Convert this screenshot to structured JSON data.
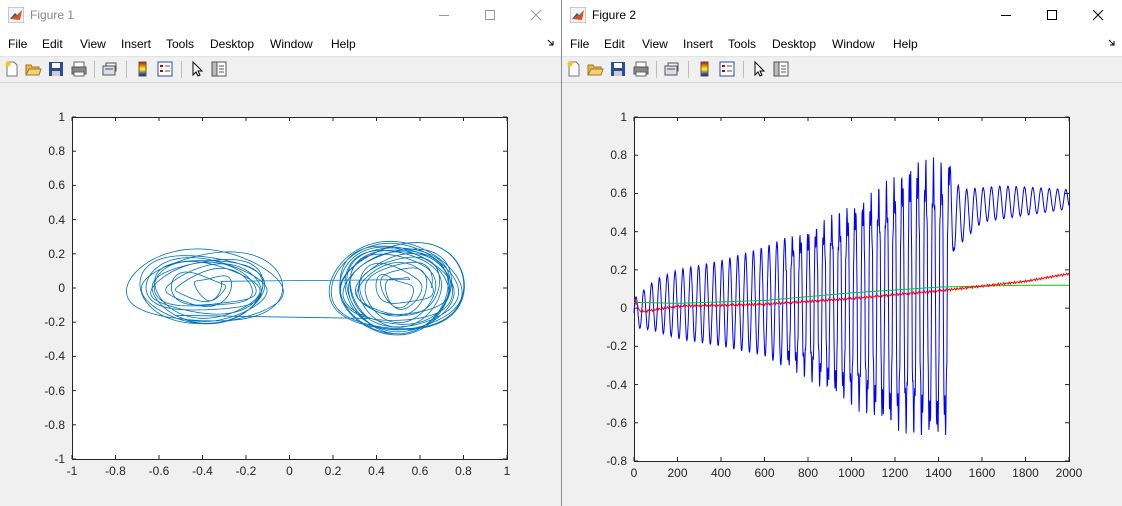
{
  "windows": [
    {
      "title": "Figure 1",
      "menu": [
        "File",
        "Edit",
        "View",
        "Insert",
        "Tools",
        "Desktop",
        "Window",
        "Help"
      ],
      "axes": {
        "xticks": [
          "-1",
          "-0.8",
          "-0.6",
          "-0.4",
          "-0.2",
          "0",
          "0.2",
          "0.4",
          "0.6",
          "0.8",
          "1"
        ],
        "yticks": [
          "1",
          "0.8",
          "0.6",
          "0.4",
          "0.2",
          "0",
          "-0.2",
          "-0.4",
          "-0.6",
          "-0.8",
          "-1"
        ]
      }
    },
    {
      "title": "Figure 2",
      "menu": [
        "File",
        "Edit",
        "View",
        "Insert",
        "Tools",
        "Desktop",
        "Window",
        "Help"
      ],
      "axes": {
        "xticks": [
          "0",
          "200",
          "400",
          "600",
          "800",
          "1000",
          "1200",
          "1400",
          "1600",
          "1800",
          "2000"
        ],
        "yticks": [
          "1",
          "0.8",
          "0.6",
          "0.4",
          "0.2",
          "0",
          "-0.2",
          "-0.4",
          "-0.6",
          "-0.8"
        ]
      }
    }
  ],
  "chart_data": [
    {
      "type": "line",
      "title": "",
      "xlabel": "",
      "ylabel": "",
      "xlim": [
        -1,
        1
      ],
      "ylim": [
        -1,
        1
      ],
      "grid": false,
      "series": [
        {
          "color": "#0072bd",
          "description_shape": "double-lobe attractor, left lobe centered x=-0.35, right lobe centered x=0.5, y within [-0.25, 0.3]",
          "x_range": [
            -0.7,
            0.78
          ],
          "y_range": [
            -0.25,
            0.3
          ]
        }
      ]
    },
    {
      "type": "line",
      "title": "",
      "xlabel": "",
      "ylabel": "",
      "xlim": [
        0,
        2000
      ],
      "ylim": [
        -0.8,
        1
      ],
      "grid": false,
      "series": [
        {
          "color": "#0000ff",
          "points": [
            [
              0,
              0.05
            ],
            [
              100,
              0.15
            ],
            [
              200,
              0.2
            ],
            [
              400,
              0.25
            ],
            [
              600,
              0.32
            ],
            [
              800,
              0.42
            ],
            [
              1000,
              0.55
            ],
            [
              1200,
              0.7
            ],
            [
              1300,
              0.8
            ],
            [
              1440,
              0.78
            ],
            [
              1500,
              0.62
            ],
            [
              1700,
              0.64
            ],
            [
              2000,
              0.62
            ]
          ],
          "lower_envelope": [
            [
              0,
              -0.1
            ],
            [
              100,
              -0.12
            ],
            [
              200,
              -0.16
            ],
            [
              400,
              -0.2
            ],
            [
              600,
              -0.25
            ],
            [
              800,
              -0.38
            ],
            [
              1000,
              -0.52
            ],
            [
              1200,
              -0.65
            ],
            [
              1400,
              -0.7
            ],
            [
              1440,
              -0.68
            ],
            [
              1470,
              0.3
            ],
            [
              1600,
              0.45
            ],
            [
              2000,
              0.52
            ]
          ]
        },
        {
          "color": "#ff0000",
          "points": [
            [
              0,
              0.05
            ],
            [
              30,
              -0.02
            ],
            [
              200,
              0.01
            ],
            [
              600,
              0.02
            ],
            [
              1000,
              0.05
            ],
            [
              1400,
              0.09
            ],
            [
              1800,
              0.14
            ],
            [
              2000,
              0.18
            ]
          ]
        },
        {
          "color": "#00cc00",
          "points": [
            [
              0,
              0.03
            ],
            [
              200,
              0.025
            ],
            [
              600,
              0.04
            ],
            [
              1000,
              0.08
            ],
            [
              1400,
              0.11
            ],
            [
              1800,
              0.12
            ],
            [
              2000,
              0.12
            ]
          ]
        }
      ]
    }
  ]
}
